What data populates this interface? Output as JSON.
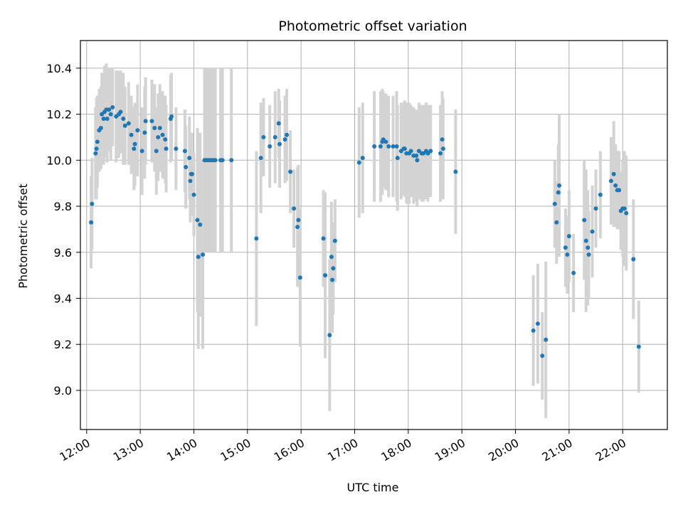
{
  "chart_data": {
    "type": "scatter",
    "title": "Photometric offset variation",
    "xlabel": "UTC time",
    "ylabel": "Photometric offset",
    "x_ticks": [
      "12:00",
      "13:00",
      "14:00",
      "15:00",
      "16:00",
      "17:00",
      "18:00",
      "19:00",
      "20:00",
      "21:00",
      "22:00"
    ],
    "y_ticks": [
      "9.0",
      "9.2",
      "9.4",
      "9.6",
      "9.8",
      "10.0",
      "10.2",
      "10.4"
    ],
    "xlim": [
      "11:53",
      "22:50"
    ],
    "ylim": [
      8.83,
      10.52
    ],
    "grid": true,
    "colors": {
      "point": "#1f77b4",
      "errorbar": "#d3d3d3",
      "grid": "#b0b0b0"
    },
    "series": [
      {
        "points": [
          [
            "12:05",
            9.73,
            0.2
          ],
          [
            "12:06",
            9.81,
            0.2
          ],
          [
            "12:10",
            10.03,
            0.2
          ],
          [
            "12:11",
            10.05,
            0.22
          ],
          [
            "12:12",
            10.08,
            0.2
          ],
          [
            "12:14",
            10.13,
            0.18
          ],
          [
            "12:16",
            10.14,
            0.18
          ],
          [
            "12:17",
            10.2,
            0.18
          ],
          [
            "12:19",
            10.18,
            0.2
          ],
          [
            "12:20",
            10.21,
            0.2
          ],
          [
            "12:22",
            10.22,
            0.2
          ],
          [
            "12:23",
            10.18,
            0.19
          ],
          [
            "12:25",
            10.22,
            0.18
          ],
          [
            "12:27",
            10.2,
            0.2
          ],
          [
            "12:29",
            10.23,
            0.17
          ],
          [
            "12:33",
            10.19,
            0.2
          ],
          [
            "12:36",
            10.2,
            0.19
          ],
          [
            "12:38",
            10.21,
            0.18
          ],
          [
            "12:41",
            10.18,
            0.2
          ],
          [
            "12:43",
            10.15,
            0.17
          ],
          [
            "12:47",
            10.16,
            0.18
          ],
          [
            "12:50",
            10.11,
            0.17
          ],
          [
            "12:53",
            10.05,
            0.18
          ],
          [
            "12:54",
            10.07,
            0.18
          ],
          [
            "12:57",
            10.13,
            0.2
          ],
          [
            "13:02",
            10.04,
            0.19
          ],
          [
            "13:05",
            10.12,
            0.2
          ],
          [
            "13:06",
            10.17,
            0.19
          ],
          [
            "13:13",
            10.17,
            0.18
          ],
          [
            "13:16",
            10.14,
            0.19
          ],
          [
            "13:18",
            10.04,
            0.19
          ],
          [
            "13:20",
            10.1,
            0.19
          ],
          [
            "13:22",
            10.14,
            0.19
          ],
          [
            "13:25",
            10.11,
            0.19
          ],
          [
            "13:28",
            10.09,
            0.19
          ],
          [
            "13:29",
            10.05,
            0.19
          ],
          [
            "13:34",
            10.18,
            0.19
          ],
          [
            "13:35",
            10.19,
            0.19
          ],
          [
            "13:40",
            10.05,
            0.18
          ],
          [
            "13:50",
            10.04,
            0.18
          ],
          [
            "13:51",
            9.97,
            0.18
          ],
          [
            "13:55",
            10.01,
            0.18
          ],
          [
            "13:56",
            9.91,
            0.18
          ],
          [
            "13:57",
            9.94,
            0.18
          ],
          [
            "13:58",
            9.94,
            0.18
          ],
          [
            "14:00",
            9.85,
            0.18
          ],
          [
            "14:04",
            9.74,
            0.4
          ],
          [
            "14:05",
            9.58,
            0.4
          ],
          [
            "14:07",
            9.72,
            0.4
          ],
          [
            "14:10",
            9.59,
            0.41
          ],
          [
            "14:12",
            10.0,
            0.4
          ],
          [
            "14:14",
            10.0,
            0.4
          ],
          [
            "14:16",
            10.0,
            0.4
          ],
          [
            "14:18",
            10.0,
            0.4
          ],
          [
            "14:20",
            10.0,
            0.4
          ],
          [
            "14:22",
            10.0,
            0.4
          ],
          [
            "14:24",
            10.0,
            0.4
          ],
          [
            "14:30",
            10.0,
            0.4
          ],
          [
            "14:32",
            10.0,
            0.4
          ],
          [
            "14:42",
            10.0,
            0.4
          ],
          [
            "15:10",
            9.66,
            0.38
          ],
          [
            "15:15",
            10.01,
            0.24
          ],
          [
            "15:18",
            10.1,
            0.17
          ],
          [
            "15:25",
            10.06,
            0.18
          ],
          [
            "15:31",
            10.1,
            0.2
          ],
          [
            "15:35",
            10.16,
            0.15
          ],
          [
            "15:36",
            10.07,
            0.19
          ],
          [
            "15:42",
            10.09,
            0.19
          ],
          [
            "15:44",
            10.11,
            0.2
          ],
          [
            "15:48",
            9.95,
            0.18
          ],
          [
            "15:52",
            9.79,
            0.17
          ],
          [
            "15:56",
            9.71,
            0.26
          ],
          [
            "15:57",
            9.74,
            0.24
          ],
          [
            "15:59",
            9.49,
            0.3
          ],
          [
            "16:25",
            9.66,
            0.21
          ],
          [
            "16:27",
            9.5,
            0.36
          ],
          [
            "16:32",
            9.24,
            0.33
          ],
          [
            "16:34",
            9.58,
            0.24
          ],
          [
            "16:35",
            9.48,
            0.23
          ],
          [
            "16:36",
            9.53,
            0.2
          ],
          [
            "16:38",
            9.65,
            0.18
          ],
          [
            "17:05",
            9.99,
            0.24
          ],
          [
            "17:09",
            10.01,
            0.24
          ],
          [
            "17:22",
            10.06,
            0.24
          ],
          [
            "17:29",
            10.06,
            0.24
          ],
          [
            "17:31",
            10.08,
            0.23
          ],
          [
            "17:32",
            10.09,
            0.21
          ],
          [
            "17:35",
            10.08,
            0.21
          ],
          [
            "17:38",
            10.06,
            0.22
          ],
          [
            "17:43",
            10.06,
            0.22
          ],
          [
            "17:47",
            10.06,
            0.24
          ],
          [
            "17:48",
            10.01,
            0.23
          ],
          [
            "17:52",
            10.04,
            0.21
          ],
          [
            "17:55",
            10.05,
            0.2
          ],
          [
            "17:56",
            10.05,
            0.21
          ],
          [
            "17:58",
            10.03,
            0.22
          ],
          [
            "18:01",
            10.03,
            0.22
          ],
          [
            "18:03",
            10.04,
            0.2
          ],
          [
            "18:06",
            10.02,
            0.21
          ],
          [
            "18:09",
            10.02,
            0.2
          ],
          [
            "18:10",
            10.0,
            0.2
          ],
          [
            "18:12",
            10.04,
            0.21
          ],
          [
            "18:15",
            10.03,
            0.21
          ],
          [
            "18:17",
            10.03,
            0.21
          ],
          [
            "18:20",
            10.04,
            0.21
          ],
          [
            "18:22",
            10.03,
            0.21
          ],
          [
            "18:25",
            10.04,
            0.2
          ],
          [
            "18:36",
            10.03,
            0.21
          ],
          [
            "18:38",
            10.09,
            0.21
          ],
          [
            "18:39",
            10.05,
            0.22
          ],
          [
            "18:53",
            9.95,
            0.27
          ],
          [
            "20:20",
            9.26,
            0.24
          ],
          [
            "20:25",
            9.29,
            0.26
          ],
          [
            "20:30",
            9.15,
            0.19
          ],
          [
            "20:34",
            9.22,
            0.34
          ],
          [
            "20:44",
            9.81,
            0.19
          ],
          [
            "20:46",
            9.73,
            0.18
          ],
          [
            "20:48",
            9.86,
            0.21
          ],
          [
            "20:49",
            9.89,
            0.31
          ],
          [
            "20:56",
            9.62,
            0.17
          ],
          [
            "20:58",
            9.59,
            0.17
          ],
          [
            "21:00",
            9.67,
            0.2
          ],
          [
            "21:05",
            9.51,
            0.17
          ],
          [
            "21:17",
            9.74,
            0.26
          ],
          [
            "21:19",
            9.65,
            0.31
          ],
          [
            "21:21",
            9.62,
            0.25
          ],
          [
            "21:22",
            9.59,
            0.19
          ],
          [
            "21:26",
            9.69,
            0.2
          ],
          [
            "21:30",
            9.79,
            0.17
          ],
          [
            "21:35",
            9.85,
            0.19
          ],
          [
            "21:47",
            9.91,
            0.19
          ],
          [
            "21:50",
            9.94,
            0.23
          ],
          [
            "21:52",
            9.89,
            0.18
          ],
          [
            "21:54",
            9.87,
            0.17
          ],
          [
            "21:56",
            9.87,
            0.17
          ],
          [
            "21:58",
            9.78,
            0.17
          ],
          [
            "22:00",
            9.79,
            0.21
          ],
          [
            "22:02",
            9.79,
            0.25
          ],
          [
            "22:04",
            9.77,
            0.25
          ],
          [
            "22:12",
            9.57,
            0.26
          ],
          [
            "22:18",
            9.19,
            0.2
          ]
        ]
      }
    ]
  }
}
